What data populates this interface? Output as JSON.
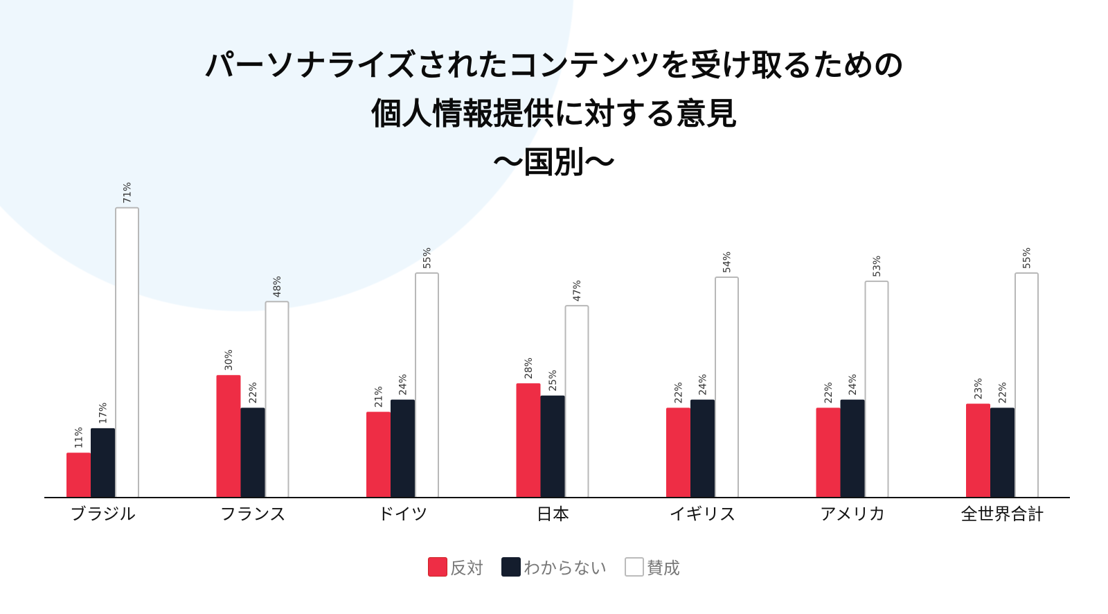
{
  "chart_data": {
    "type": "bar",
    "title": [
      "パーソナライズされたコンテンツを受け取るための",
      "個人情報提供に対する意見",
      "〜国別〜"
    ],
    "categories": [
      "ブラジル",
      "フランス",
      "ドイツ",
      "日本",
      "イギリス",
      "アメリカ",
      "全世界合計"
    ],
    "series": [
      {
        "name": "反対",
        "color": "#ee2d45",
        "values": [
          11,
          30,
          21,
          28,
          22,
          22,
          23
        ]
      },
      {
        "name": "わからない",
        "color": "#141d2d",
        "values": [
          17,
          22,
          24,
          25,
          24,
          24,
          22
        ]
      },
      {
        "name": "賛成",
        "color": "#ffffff",
        "values": [
          71,
          48,
          55,
          47,
          54,
          53,
          55
        ]
      }
    ],
    "value_suffix": "%",
    "xlabel": "",
    "ylabel": "",
    "ylim": [
      0,
      75
    ],
    "grid": false,
    "legend_position": "bottom-center"
  }
}
